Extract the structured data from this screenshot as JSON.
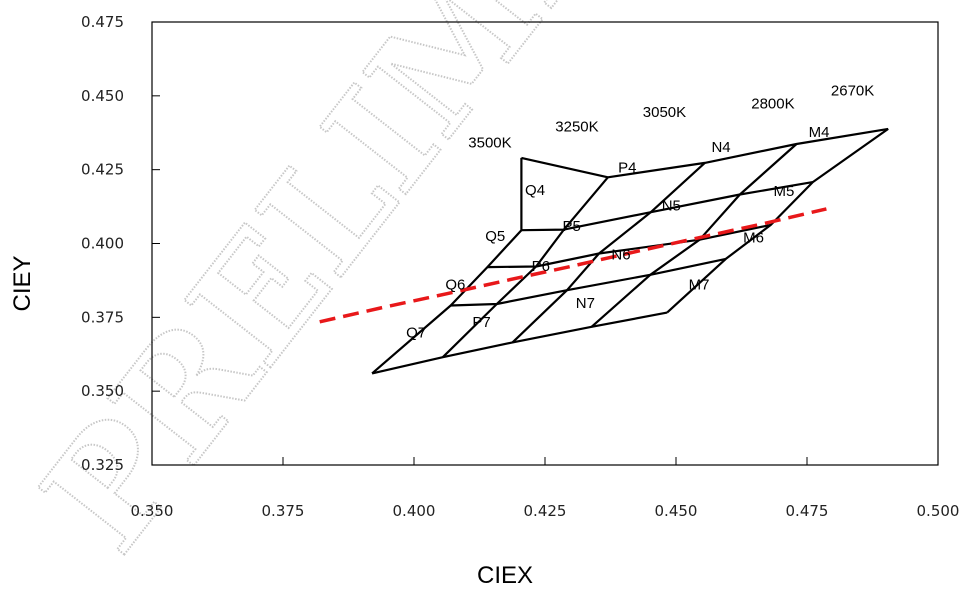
{
  "chart_data": {
    "type": "line",
    "xlabel": "CIEX",
    "ylabel": "CIEY",
    "xlim": [
      0.35,
      0.5
    ],
    "ylim": [
      0.325,
      0.475
    ],
    "x_ticks": [
      "0.350",
      "0.375",
      "0.400",
      "0.425",
      "0.450",
      "0.475",
      "0.500"
    ],
    "y_ticks": [
      "0.325",
      "0.350",
      "0.375",
      "0.400",
      "0.425",
      "0.450",
      "0.475"
    ],
    "grid": false,
    "watermark": "PRELIMINARY",
    "isotherms": [
      {
        "label": "3500K",
        "points": [
          [
            0.392,
            0.356
          ],
          [
            0.407,
            0.379
          ],
          [
            0.414,
            0.392
          ],
          [
            0.4205,
            0.4045
          ],
          [
            0.4205,
            0.429
          ]
        ]
      },
      {
        "label": "3250K",
        "points": [
          [
            0.4055,
            0.3615
          ],
          [
            0.4158,
            0.3795
          ],
          [
            0.4233,
            0.3922
          ],
          [
            0.4286,
            0.4047
          ],
          [
            0.437,
            0.4224
          ]
        ]
      },
      {
        "label": "3050K",
        "points": [
          [
            0.4188,
            0.3665
          ],
          [
            0.4292,
            0.3842
          ],
          [
            0.4353,
            0.3966
          ],
          [
            0.4452,
            0.4106
          ],
          [
            0.4555,
            0.4273
          ]
        ]
      },
      {
        "label": "2800K",
        "points": [
          [
            0.4339,
            0.3718
          ],
          [
            0.4451,
            0.3894
          ],
          [
            0.4545,
            0.4013
          ],
          [
            0.4622,
            0.4166
          ],
          [
            0.473,
            0.4337
          ]
        ]
      },
      {
        "label": "2670K",
        "points": [
          [
            0.4483,
            0.3766
          ],
          [
            0.4595,
            0.3948
          ],
          [
            0.4681,
            0.4063
          ],
          [
            0.4761,
            0.4208
          ],
          [
            0.4905,
            0.4388
          ]
        ]
      }
    ],
    "boundary_lines": [
      {
        "points": [
          [
            0.392,
            0.356
          ],
          [
            0.4055,
            0.3615
          ],
          [
            0.4188,
            0.3665
          ],
          [
            0.4339,
            0.3718
          ],
          [
            0.4483,
            0.3766
          ]
        ]
      },
      {
        "points": [
          [
            0.407,
            0.379
          ],
          [
            0.4158,
            0.3795
          ],
          [
            0.4292,
            0.3842
          ],
          [
            0.4451,
            0.3894
          ],
          [
            0.4595,
            0.3948
          ]
        ]
      },
      {
        "points": [
          [
            0.414,
            0.392
          ],
          [
            0.4233,
            0.3922
          ],
          [
            0.4353,
            0.3966
          ],
          [
            0.4545,
            0.4013
          ],
          [
            0.4681,
            0.4063
          ]
        ]
      },
      {
        "points": [
          [
            0.4205,
            0.4045
          ],
          [
            0.4286,
            0.4047
          ],
          [
            0.4452,
            0.4106
          ],
          [
            0.4622,
            0.4166
          ],
          [
            0.4761,
            0.4208
          ]
        ]
      },
      {
        "points": [
          [
            0.4205,
            0.429
          ],
          [
            0.437,
            0.4224
          ],
          [
            0.4555,
            0.4273
          ],
          [
            0.473,
            0.4337
          ],
          [
            0.4905,
            0.4388
          ]
        ]
      }
    ],
    "cct_labels": [
      {
        "text": "3500K",
        "x": 0.4145,
        "y": 0.4342
      },
      {
        "text": "3250K",
        "x": 0.4311,
        "y": 0.4397
      },
      {
        "text": "3050K",
        "x": 0.4478,
        "y": 0.4446
      },
      {
        "text": "2800K",
        "x": 0.4685,
        "y": 0.4474
      },
      {
        "text": "2670K",
        "x": 0.4837,
        "y": 0.4518
      }
    ],
    "bin_labels": [
      {
        "text": "Q4",
        "x": 0.4231,
        "y": 0.4181
      },
      {
        "text": "P4",
        "x": 0.4407,
        "y": 0.4258
      },
      {
        "text": "N4",
        "x": 0.4586,
        "y": 0.4327
      },
      {
        "text": "M4",
        "x": 0.4773,
        "y": 0.4377
      },
      {
        "text": "Q5",
        "x": 0.4155,
        "y": 0.4026
      },
      {
        "text": "P5",
        "x": 0.4301,
        "y": 0.4059
      },
      {
        "text": "N5",
        "x": 0.4491,
        "y": 0.4129
      },
      {
        "text": "M5",
        "x": 0.4706,
        "y": 0.4177
      },
      {
        "text": "Q6",
        "x": 0.4079,
        "y": 0.3861
      },
      {
        "text": "P6",
        "x": 0.4242,
        "y": 0.3924
      },
      {
        "text": "N6",
        "x": 0.4395,
        "y": 0.3962
      },
      {
        "text": "M6",
        "x": 0.4648,
        "y": 0.4021
      },
      {
        "text": "Q7",
        "x": 0.4004,
        "y": 0.3699
      },
      {
        "text": "P7",
        "x": 0.4129,
        "y": 0.3734
      },
      {
        "text": "N7",
        "x": 0.4327,
        "y": 0.3798
      },
      {
        "text": "M7",
        "x": 0.4544,
        "y": 0.3862
      }
    ],
    "blackbody_locus": {
      "color": "#e8181a",
      "points": [
        [
          0.382,
          0.3735
        ],
        [
          0.3942,
          0.3784
        ],
        [
          0.4063,
          0.383
        ],
        [
          0.4199,
          0.3884
        ],
        [
          0.4296,
          0.3921
        ],
        [
          0.4432,
          0.3976
        ],
        [
          0.4542,
          0.4019
        ],
        [
          0.4669,
          0.4068
        ],
        [
          0.4787,
          0.4117
        ]
      ]
    }
  }
}
